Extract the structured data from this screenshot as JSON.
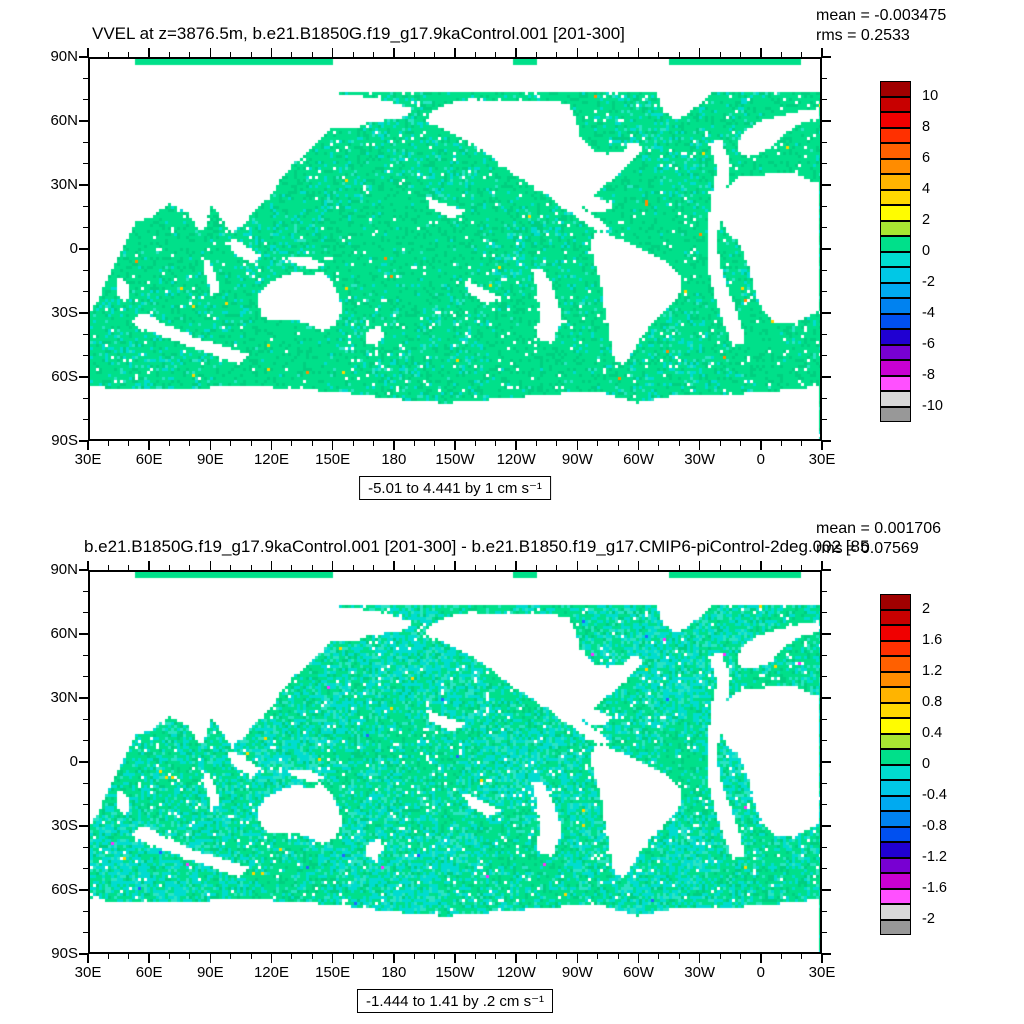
{
  "axes": {
    "lon_tick_labels": [
      "30E",
      "60E",
      "90E",
      "120E",
      "150E",
      "180",
      "150W",
      "120W",
      "90W",
      "60W",
      "30W",
      "0",
      "30E"
    ],
    "lat_tick_labels": [
      "90N",
      "60N",
      "30N",
      "0",
      "30S",
      "60S",
      "90S"
    ],
    "lon_range_deg": [
      30,
      390
    ],
    "lat_range_deg": [
      -90,
      90
    ],
    "major_tick_deg": 30,
    "minor_tick_deg": 10
  },
  "colorbar_colors": [
    "#a00000",
    "#c80000",
    "#f00000",
    "#ff3000",
    "#ff6000",
    "#ff8c00",
    "#ffb400",
    "#ffd800",
    "#fffc00",
    "#a8e632",
    "#00e08a",
    "#00dcd0",
    "#00c8e6",
    "#00aaf0",
    "#0082f0",
    "#0050f0",
    "#2000d2",
    "#7800d2",
    "#c800d2",
    "#ff50ff",
    "#d8d8d8",
    "#989898"
  ],
  "panels": [
    {
      "name": "control",
      "title": "VVEL at z=3876.5m, b.e21.B1850G.f19_g17.9kaControl.001 [201-300]",
      "stats": {
        "mean_label": "mean = -0.003475",
        "rms_label": "rms = 0.2533"
      },
      "range_label": "-5.01 to 4.441 by 1 cm s⁻¹",
      "colorbar_labels": [
        "10",
        "8",
        "6",
        "4",
        "2",
        "0",
        "-2",
        "-4",
        "-6",
        "-8",
        "-10"
      ],
      "texture": {
        "cyan_base": 0.1,
        "cyan_var": 0.12,
        "hole": 0.03,
        "seed": 3
      }
    },
    {
      "name": "difference",
      "title": "b.e21.B1850G.f19_g17.9kaControl.001 [201-300] - b.e21.B1850.f19_g17.CMIP6-piControl-2deg.002 [85",
      "stats": {
        "mean_label": "mean = 0.001706",
        "rms_label": "rms = 0.07569"
      },
      "range_label": "-1.444 to 1.41 by .2 cm s⁻¹",
      "colorbar_labels": [
        "2",
        "1.6",
        "1.2",
        "0.8",
        "0.4",
        "0",
        "-0.4",
        "-0.8",
        "-1.2",
        "-1.6",
        "-2"
      ],
      "texture": {
        "cyan_base": 0.42,
        "cyan_var": 0.18,
        "hole": 0.035,
        "seed": 11
      }
    }
  ],
  "chart_data": [
    {
      "type": "heatmap",
      "title": "VVEL at z=3876.5m, b.e21.B1850G.f19_g17.9kaControl.001 [201-300]",
      "variable": "VVEL",
      "depth": "z=3876.5m",
      "mean": -0.003475,
      "rms": 0.2533,
      "contour_min": -5.01,
      "contour_max": 4.441,
      "contour_interval": 1,
      "units": "cm s⁻¹",
      "colorbar_labeled_levels": [
        10,
        8,
        6,
        4,
        2,
        0,
        -2,
        -4,
        -6,
        -8,
        -10
      ],
      "colorbar_n_boxes": 22,
      "x_tick_labels": [
        "30E",
        "60E",
        "90E",
        "120E",
        "150E",
        "180",
        "150W",
        "120W",
        "90W",
        "60W",
        "30W",
        "0",
        "30E"
      ],
      "y_tick_labels": [
        "90N",
        "60N",
        "30N",
        "0",
        "30S",
        "60S",
        "90S"
      ],
      "description": "Global filled-contour map of ocean vertical velocity at 3876.5 m; deep-ocean cells mostly 0 to 1 cm/s (green) with -1 to 0 (cyan) speckle and rare warm-colored dots; land and shallow topography blank (white)."
    },
    {
      "type": "heatmap",
      "title": "b.e21.B1850G.f19_g17.9kaControl.001 [201-300] - b.e21.B1850.f19_g17.CMIP6-piControl-2deg.002 [85",
      "variable": "VVEL difference",
      "depth": "z=3876.5m",
      "mean": 0.001706,
      "rms": 0.07569,
      "contour_min": -1.444,
      "contour_max": 1.41,
      "contour_interval": 0.2,
      "units": "cm s⁻¹",
      "colorbar_labeled_levels": [
        2,
        1.6,
        1.2,
        0.8,
        0.4,
        0,
        -0.4,
        -0.8,
        -1.2,
        -1.6,
        -2
      ],
      "colorbar_n_boxes": 22,
      "x_tick_labels": [
        "30E",
        "60E",
        "90E",
        "120E",
        "150E",
        "180",
        "150W",
        "120W",
        "90W",
        "60W",
        "30W",
        "0",
        "30E"
      ],
      "y_tick_labels": [
        "90N",
        "60N",
        "30N",
        "0",
        "30S",
        "60S",
        "90S"
      ],
      "description": "Difference map (control minus piControl); deep-ocean cells a fine mix of green (0 to 0.2) and cyan (-0.2 to 0) with rare yellow/blue/magenta dots; land and shallow topography blank (white)."
    }
  ],
  "map_geometry": {
    "arctic_white_band": [
      74,
      87.2
    ],
    "polar_strip_segments": [
      [
        52,
        150
      ],
      [
        238,
        250
      ],
      [
        316,
        380
      ]
    ],
    "land_polygons": [
      [
        [
          30,
          78
        ],
        [
          60,
          79
        ],
        [
          95,
          78
        ],
        [
          130,
          76
        ],
        [
          160,
          73
        ],
        [
          178,
          70
        ],
        [
          190,
          66
        ],
        [
          184,
          62
        ],
        [
          176,
          61
        ],
        [
          168,
          60
        ],
        [
          160,
          57
        ],
        [
          150,
          58
        ],
        [
          144,
          52
        ],
        [
          138,
          46
        ],
        [
          130,
          40
        ],
        [
          124,
          33
        ],
        [
          121,
          27
        ],
        [
          113,
          20
        ],
        [
          107,
          13
        ],
        [
          100,
          7
        ],
        [
          95,
          14
        ],
        [
          90,
          21
        ],
        [
          85,
          7
        ],
        [
          78,
          17
        ],
        [
          69,
          22
        ],
        [
          61,
          15
        ],
        [
          53,
          13
        ],
        [
          45,
          17
        ],
        [
          38,
          24
        ],
        [
          33,
          29
        ],
        [
          30,
          31
        ]
      ],
      [
        [
          30,
          32
        ],
        [
          38,
          31
        ],
        [
          44,
          27
        ],
        [
          50,
          17
        ],
        [
          52,
          11
        ],
        [
          46,
          0
        ],
        [
          41,
          -10
        ],
        [
          37,
          -18
        ],
        [
          33,
          -26
        ],
        [
          30,
          -30
        ]
      ],
      [
        [
          44,
          -13
        ],
        [
          48,
          -16
        ],
        [
          50,
          -21
        ],
        [
          47,
          -25
        ],
        [
          44,
          -22
        ],
        [
          43,
          -17
        ]
      ],
      [
        [
          113,
          -22
        ],
        [
          117,
          -17
        ],
        [
          124,
          -13
        ],
        [
          131,
          -11
        ],
        [
          138,
          -12
        ],
        [
          144,
          -11
        ],
        [
          149,
          -15
        ],
        [
          153,
          -22
        ],
        [
          154,
          -29
        ],
        [
          151,
          -36
        ],
        [
          145,
          -39
        ],
        [
          138,
          -36
        ],
        [
          131,
          -33
        ],
        [
          124,
          -34
        ],
        [
          117,
          -33
        ],
        [
          113,
          -27
        ]
      ],
      [
        [
          130,
          -3
        ],
        [
          138,
          -4
        ],
        [
          146,
          -7
        ],
        [
          141,
          -10
        ],
        [
          133,
          -8
        ],
        [
          127,
          -5
        ]
      ],
      [
        [
          100,
          5
        ],
        [
          108,
          1
        ],
        [
          114,
          -3
        ],
        [
          110,
          -7
        ],
        [
          103,
          -3
        ],
        [
          98,
          2
        ]
      ],
      [
        [
          197,
          64
        ],
        [
          206,
          69
        ],
        [
          218,
          71
        ],
        [
          232,
          70
        ],
        [
          246,
          70
        ],
        [
          258,
          70
        ],
        [
          266,
          68
        ],
        [
          270,
          61
        ],
        [
          272,
          53
        ],
        [
          278,
          47
        ],
        [
          285,
          45
        ],
        [
          292,
          46
        ],
        [
          298,
          51
        ],
        [
          303,
          48
        ],
        [
          298,
          42
        ],
        [
          291,
          36
        ],
        [
          285,
          31
        ],
        [
          280,
          27
        ],
        [
          275,
          21
        ],
        [
          269,
          17
        ],
        [
          263,
          19
        ],
        [
          258,
          24
        ],
        [
          251,
          28
        ],
        [
          245,
          32
        ],
        [
          238,
          36
        ],
        [
          231,
          41
        ],
        [
          225,
          46
        ],
        [
          218,
          50
        ],
        [
          210,
          54
        ],
        [
          202,
          58
        ],
        [
          196,
          60
        ]
      ],
      [
        [
          268,
          17
        ],
        [
          273,
          13
        ],
        [
          279,
          9
        ],
        [
          284,
          8
        ],
        [
          286,
          10
        ],
        [
          281,
          14
        ],
        [
          276,
          18
        ],
        [
          271,
          19
        ]
      ],
      [
        [
          272,
          23
        ],
        [
          280,
          25
        ],
        [
          288,
          21
        ],
        [
          283,
          17
        ],
        [
          276,
          18
        ]
      ],
      [
        [
          314,
          83
        ],
        [
          327,
          82
        ],
        [
          336,
          79
        ],
        [
          337,
          74
        ],
        [
          330,
          68
        ],
        [
          320,
          61
        ],
        [
          313,
          65
        ],
        [
          310,
          72
        ],
        [
          310,
          78
        ]
      ],
      [
        [
          280,
          9
        ],
        [
          288,
          6
        ],
        [
          296,
          3
        ],
        [
          303,
          -1
        ],
        [
          310,
          -4
        ],
        [
          317,
          -8
        ],
        [
          321,
          -13
        ],
        [
          322,
          -19
        ],
        [
          318,
          -25
        ],
        [
          312,
          -31
        ],
        [
          306,
          -37
        ],
        [
          301,
          -43
        ],
        [
          297,
          -50
        ],
        [
          293,
          -55
        ],
        [
          289,
          -53
        ],
        [
          287,
          -46
        ],
        [
          286,
          -38
        ],
        [
          284,
          -30
        ],
        [
          283,
          -22
        ],
        [
          281,
          -13
        ],
        [
          278,
          -4
        ],
        [
          277,
          3
        ]
      ],
      [
        [
          30,
          -65
        ],
        [
          55,
          -67
        ],
        [
          80,
          -66
        ],
        [
          105,
          -65
        ],
        [
          130,
          -66
        ],
        [
          155,
          -68
        ],
        [
          180,
          -71
        ],
        [
          205,
          -73
        ],
        [
          230,
          -71
        ],
        [
          255,
          -69
        ],
        [
          280,
          -67
        ],
        [
          300,
          -73
        ],
        [
          320,
          -69
        ],
        [
          345,
          -69
        ],
        [
          370,
          -67
        ],
        [
          390,
          -65
        ],
        [
          390,
          -90
        ],
        [
          30,
          -90
        ]
      ],
      [
        [
          390,
          31
        ],
        [
          384,
          33
        ],
        [
          377,
          36
        ],
        [
          369,
          36
        ],
        [
          361,
          35
        ],
        [
          352,
          35
        ],
        [
          345,
          30
        ],
        [
          342,
          22
        ],
        [
          341,
          14
        ],
        [
          344,
          8
        ],
        [
          349,
          4
        ],
        [
          352,
          -2
        ],
        [
          355,
          -9
        ],
        [
          357,
          -17
        ],
        [
          359,
          -24
        ],
        [
          363,
          -31
        ],
        [
          369,
          -35
        ],
        [
          377,
          -35
        ],
        [
          384,
          -32
        ],
        [
          390,
          -29
        ]
      ],
      [
        [
          390,
          62
        ],
        [
          381,
          60
        ],
        [
          373,
          55
        ],
        [
          366,
          48
        ],
        [
          358,
          44
        ],
        [
          351,
          44
        ],
        [
          349,
          50
        ],
        [
          353,
          56
        ],
        [
          360,
          60
        ],
        [
          369,
          63
        ],
        [
          379,
          65
        ],
        [
          390,
          67
        ]
      ],
      [
        [
          166,
          -40
        ],
        [
          172,
          -36
        ],
        [
          176,
          -41
        ],
        [
          171,
          -46
        ],
        [
          166,
          -44
        ]
      ]
    ],
    "shallow_polygons": [
      [
        [
          341,
          52
        ],
        [
          346,
          40
        ],
        [
          344,
          28
        ],
        [
          341,
          16
        ],
        [
          339,
          4
        ],
        [
          341,
          -8
        ],
        [
          345,
          -20
        ],
        [
          350,
          -32
        ],
        [
          353,
          -44
        ],
        [
          347,
          -46
        ],
        [
          342,
          -34
        ],
        [
          338,
          -22
        ],
        [
          335,
          -10
        ],
        [
          334,
          2
        ],
        [
          335,
          14
        ],
        [
          337,
          26
        ],
        [
          339,
          38
        ],
        [
          335,
          50
        ]
      ],
      [
        [
          254,
          -10
        ],
        [
          259,
          -20
        ],
        [
          263,
          -32
        ],
        [
          258,
          -45
        ],
        [
          250,
          -42
        ],
        [
          252,
          -30
        ],
        [
          250,
          -18
        ],
        [
          248,
          -10
        ]
      ],
      [
        [
          56,
          -30
        ],
        [
          68,
          -36
        ],
        [
          82,
          -42
        ],
        [
          96,
          -46
        ],
        [
          108,
          -50
        ],
        [
          104,
          -55
        ],
        [
          90,
          -50
        ],
        [
          76,
          -45
        ],
        [
          62,
          -40
        ],
        [
          50,
          -35
        ]
      ],
      [
        [
          196,
          25
        ],
        [
          206,
          21
        ],
        [
          215,
          18
        ],
        [
          209,
          14
        ],
        [
          198,
          19
        ]
      ],
      [
        [
          215,
          -15
        ],
        [
          225,
          -19
        ],
        [
          232,
          -23
        ],
        [
          226,
          -26
        ],
        [
          216,
          -20
        ]
      ],
      [
        [
          88,
          -5
        ],
        [
          92,
          -12
        ],
        [
          94,
          -20
        ],
        [
          90,
          -22
        ],
        [
          87,
          -12
        ],
        [
          85,
          -4
        ]
      ]
    ]
  }
}
